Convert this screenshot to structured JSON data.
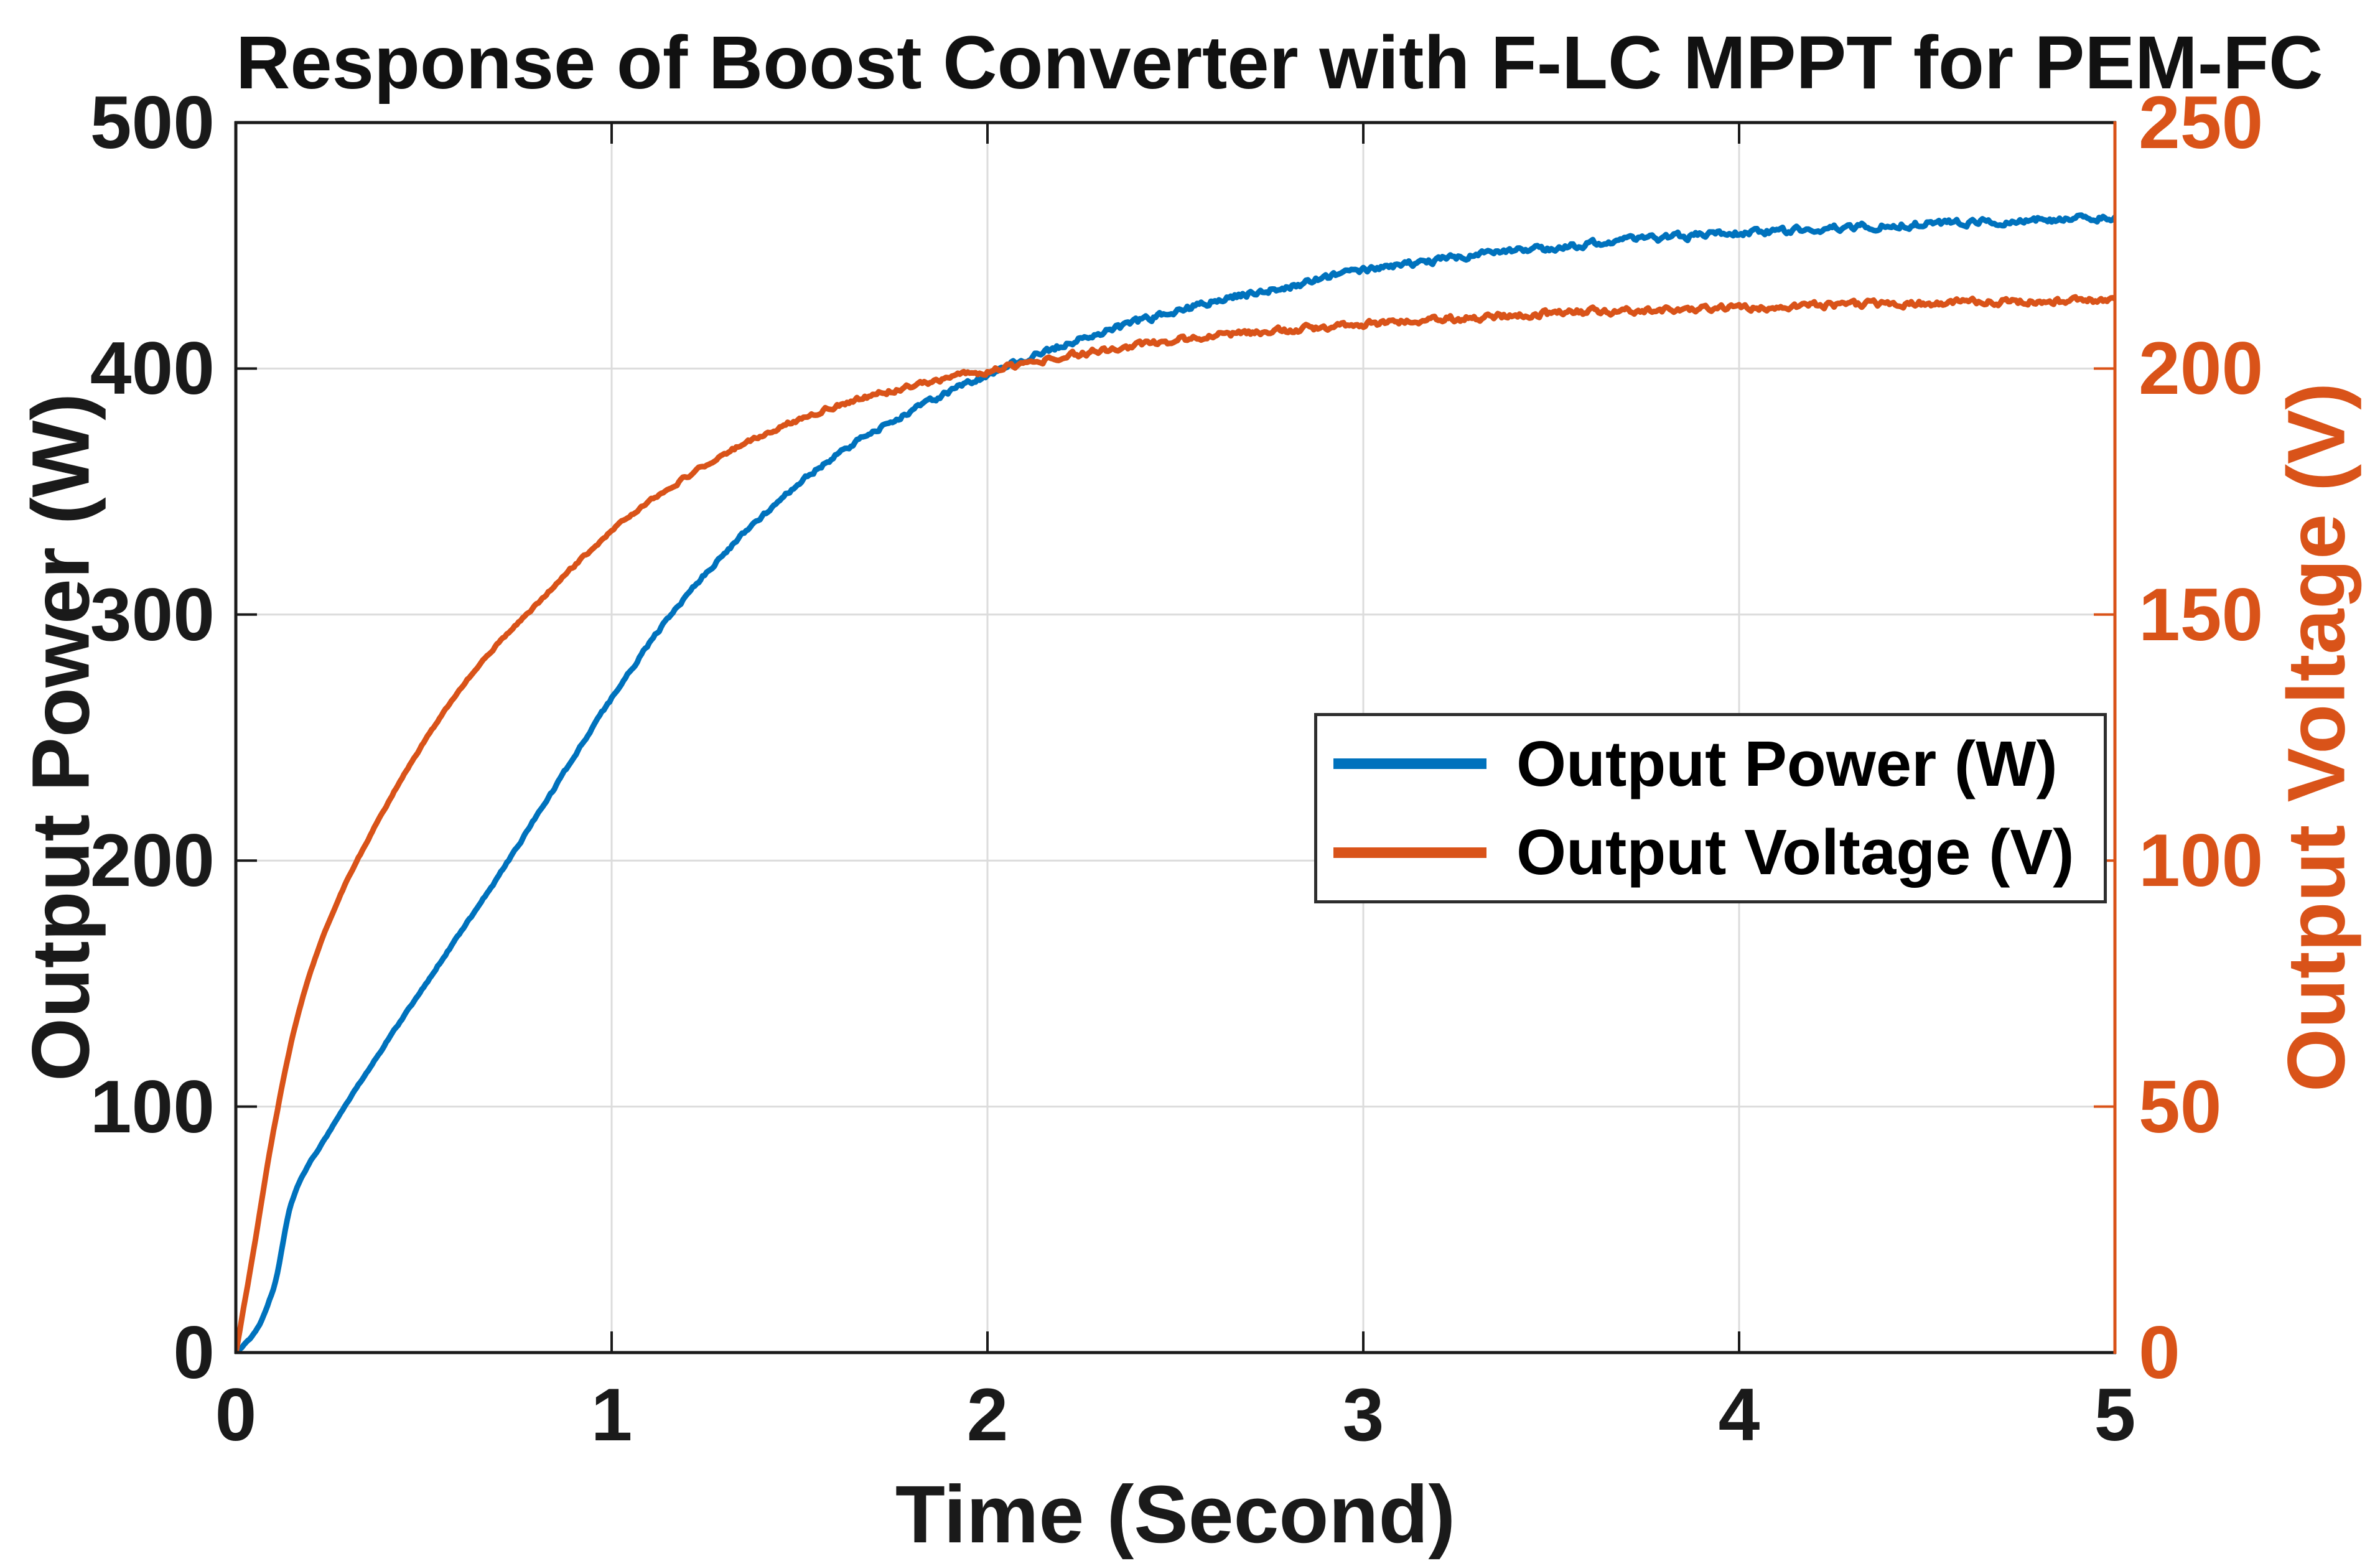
{
  "figure": {
    "title": "Response of Boost Converter with F-LC MPPT for PEM-FC",
    "x_axis": {
      "label": "Time (Second)",
      "ticks": [
        "0",
        "1",
        "2",
        "3",
        "4",
        "5"
      ]
    },
    "y_axis_left": {
      "label": "Output Power (W)",
      "ticks": [
        "0",
        "100",
        "200",
        "300",
        "400",
        "500"
      ],
      "color": "#1a1a1a"
    },
    "y_axis_right": {
      "label": "Output Voltage (V)",
      "ticks": [
        "0",
        "50",
        "100",
        "150",
        "200",
        "250"
      ],
      "color": "#D95319"
    },
    "legend": {
      "items": [
        {
          "label": "Output Power (W)",
          "color": "#0072BD"
        },
        {
          "label": "Output Voltage (V)",
          "color": "#D95319"
        }
      ]
    }
  },
  "chart_data": {
    "type": "line",
    "title": "Response of Boost Converter with F-LC MPPT for PEM-FC",
    "xlabel": "Time (Second)",
    "ylabel_left": "Output Power (W)",
    "ylabel_right": "Output Voltage (V)",
    "xlim": [
      0,
      5
    ],
    "ylim_left": [
      0,
      500
    ],
    "ylim_right": [
      0,
      250
    ],
    "x_ticks": [
      0,
      1,
      2,
      3,
      4,
      5
    ],
    "y_ticks_left": [
      0,
      100,
      200,
      300,
      400,
      500
    ],
    "y_ticks_right": [
      0,
      50,
      100,
      150,
      200,
      250
    ],
    "grid": true,
    "grid_color": "#DCDCDC",
    "axis_color_left": "#1a1a1a",
    "axis_color_right": "#D95319",
    "legend_position": "center-right",
    "line_style": "noisy-solid",
    "series": [
      {
        "name": "Output Power (W)",
        "axis": "left",
        "color": "#0072BD",
        "x": [
          0,
          0.05,
          0.1,
          0.15,
          0.25,
          0.4,
          0.55,
          0.7,
          0.85,
          1.0,
          1.2,
          1.4,
          1.6,
          1.8,
          2.0,
          2.2,
          2.4,
          2.6,
          2.8,
          3.0,
          3.25,
          3.5,
          3.75,
          4.0,
          4.25,
          4.5,
          4.75,
          5.0
        ],
        "y": [
          0,
          8,
          26,
          62,
          90,
          126,
          160,
          194,
          230,
          266,
          308,
          340,
          365,
          383,
          397.5,
          409.5,
          419,
          427,
          433.5,
          439.5,
          445,
          449,
          452.5,
          455,
          457,
          458.8,
          460.2,
          461.5
        ]
      },
      {
        "name": "Output Voltage (V)",
        "axis": "right",
        "color": "#D95319",
        "x": [
          0,
          0.05,
          0.1,
          0.17,
          0.25,
          0.35,
          0.5,
          0.65,
          0.8,
          1.0,
          1.2,
          1.4,
          1.6,
          1.8,
          2.0,
          2.25,
          2.5,
          2.75,
          3.0,
          3.5,
          4.0,
          4.5,
          5.0
        ],
        "y": [
          0,
          22,
          45,
          70,
          88,
          104,
          124,
          140,
          152,
          167,
          178,
          186.5,
          192.5,
          196.5,
          199.5,
          203,
          205.7,
          207.6,
          209,
          211.2,
          212.5,
          213.3,
          214
        ]
      }
    ]
  }
}
